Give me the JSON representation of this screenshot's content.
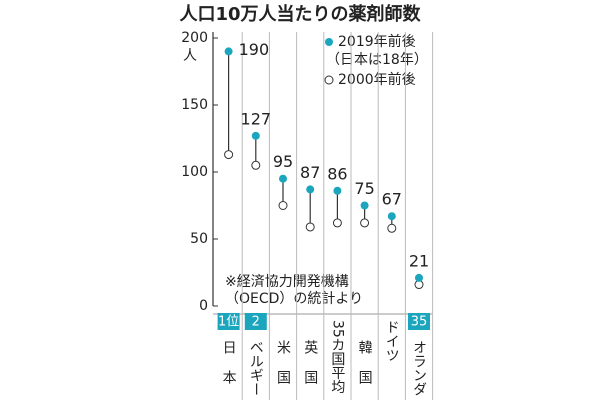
{
  "chart_data": {
    "type": "dumbbell",
    "title": "人口10万人当たりの薬剤師数",
    "y_unit": "人",
    "categories": [
      "日本",
      "ベルギー",
      "米国",
      "英国",
      "35カ国平均",
      "韓国",
      "ドイツ",
      "オランダ"
    ],
    "rank_labels": [
      "1位",
      "2",
      null,
      null,
      null,
      null,
      null,
      "35"
    ],
    "series": [
      {
        "name": "2019年前後",
        "color": "#1ba6bd",
        "values": [
          190,
          127,
          95,
          87,
          86,
          75,
          67,
          21
        ]
      },
      {
        "name": "2000年前後",
        "color": "#ffffff",
        "values": [
          113,
          105,
          75,
          59,
          62,
          62,
          58,
          16
        ]
      }
    ],
    "legend_note": "（日本は18年）",
    "note": [
      "※経済協力開発機構",
      "（OECD）の統計より"
    ],
    "ylim": [
      0,
      200
    ],
    "yticks": [
      0,
      50,
      100,
      150,
      200
    ]
  }
}
